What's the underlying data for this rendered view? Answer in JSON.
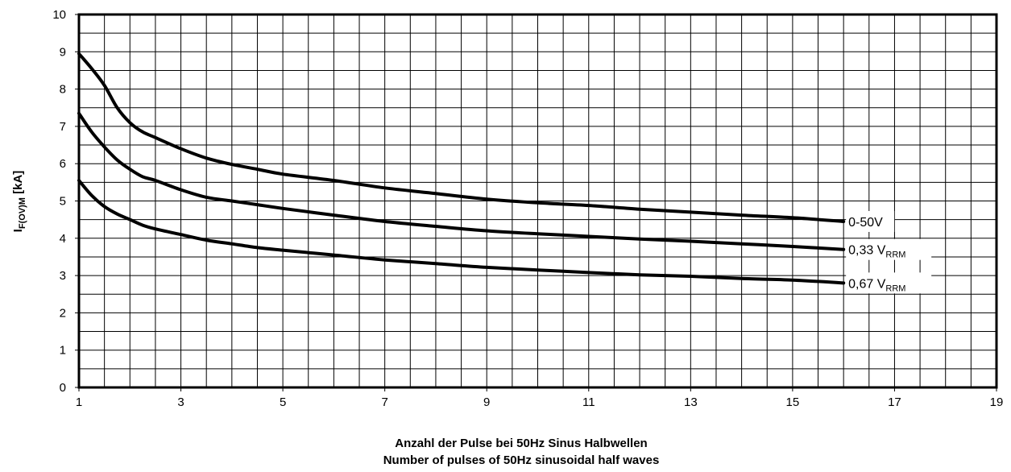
{
  "chart_data": {
    "type": "line",
    "xlabel_line1": "Anzahl der Pulse bei 50Hz Sinus Halbwellen",
    "xlabel_line2": "Number of pulses of 50Hz sinusoidal half waves",
    "ylabel_main": "I",
    "ylabel_sub": "F(OV)M",
    "ylabel_unit": " [kA]",
    "xlim": [
      1,
      19
    ],
    "ylim": [
      0,
      10
    ],
    "x_ticks": [
      "1",
      "3",
      "5",
      "7",
      "9",
      "11",
      "13",
      "15",
      "17",
      "19"
    ],
    "y_ticks": [
      "0",
      "1",
      "2",
      "3",
      "4",
      "5",
      "6",
      "7",
      "8",
      "9",
      "10"
    ],
    "grid": true,
    "series": [
      {
        "label_main": "0-50V",
        "label_sub": "",
        "x": [
          1,
          1.25,
          1.5,
          1.75,
          2,
          2.25,
          2.5,
          3,
          3.5,
          4,
          4.5,
          5,
          6,
          7,
          8,
          9,
          10,
          11,
          12,
          13,
          14,
          15,
          16
        ],
        "y": [
          8.95,
          8.55,
          8.1,
          7.5,
          7.1,
          6.85,
          6.7,
          6.4,
          6.15,
          5.98,
          5.85,
          5.72,
          5.55,
          5.35,
          5.2,
          5.05,
          4.95,
          4.88,
          4.78,
          4.7,
          4.62,
          4.55,
          4.45
        ]
      },
      {
        "label_main": "0,33 V",
        "label_sub": "RRM",
        "x": [
          1,
          1.25,
          1.5,
          1.75,
          2,
          2.25,
          2.5,
          3,
          3.5,
          4,
          4.5,
          5,
          6,
          7,
          8,
          9,
          10,
          11,
          12,
          13,
          14,
          15,
          16
        ],
        "y": [
          7.35,
          6.85,
          6.45,
          6.1,
          5.85,
          5.65,
          5.55,
          5.3,
          5.1,
          5.0,
          4.9,
          4.8,
          4.62,
          4.45,
          4.32,
          4.2,
          4.12,
          4.05,
          3.98,
          3.92,
          3.85,
          3.78,
          3.7
        ]
      },
      {
        "label_main": "0,67 V",
        "label_sub": "RRM",
        "x": [
          1,
          1.25,
          1.5,
          1.75,
          2,
          2.25,
          2.5,
          3,
          3.5,
          4,
          4.5,
          5,
          6,
          7,
          8,
          9,
          10,
          11,
          12,
          13,
          14,
          15,
          16
        ],
        "y": [
          5.55,
          5.15,
          4.85,
          4.65,
          4.5,
          4.35,
          4.25,
          4.1,
          3.95,
          3.85,
          3.75,
          3.68,
          3.55,
          3.42,
          3.32,
          3.22,
          3.15,
          3.08,
          3.02,
          2.98,
          2.92,
          2.88,
          2.8
        ]
      }
    ]
  }
}
